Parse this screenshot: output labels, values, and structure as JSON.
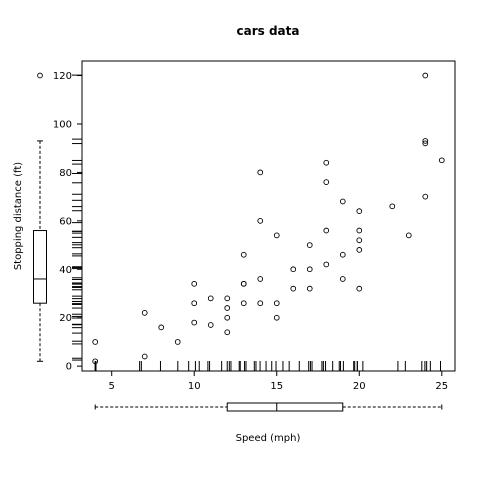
{
  "chart_data": {
    "type": "scatter",
    "title": "cars data",
    "xlabel": "Speed (mph)",
    "ylabel": "Stopping distance (ft)",
    "xlim": [
      3.2,
      25.8
    ],
    "ylim": [
      -2,
      126
    ],
    "x_ticks": [
      5,
      10,
      15,
      20,
      25
    ],
    "y_ticks": [
      0,
      20,
      40,
      60,
      80,
      100,
      120
    ],
    "grid": false,
    "marginal": {
      "x_rug": true,
      "y_rug": true,
      "x_boxplot": {
        "min": 4,
        "q1": 12,
        "median": 15,
        "q3": 19,
        "max": 25
      },
      "y_boxplot": {
        "min": 2,
        "q1": 26,
        "median": 36,
        "q3": 56,
        "max": 93,
        "outliers": [
          120
        ]
      }
    },
    "points": [
      {
        "x": 4,
        "y": 2
      },
      {
        "x": 4,
        "y": 10
      },
      {
        "x": 7,
        "y": 4
      },
      {
        "x": 7,
        "y": 22
      },
      {
        "x": 8,
        "y": 16
      },
      {
        "x": 9,
        "y": 10
      },
      {
        "x": 10,
        "y": 18
      },
      {
        "x": 10,
        "y": 26
      },
      {
        "x": 10,
        "y": 34
      },
      {
        "x": 11,
        "y": 17
      },
      {
        "x": 11,
        "y": 28
      },
      {
        "x": 12,
        "y": 14
      },
      {
        "x": 12,
        "y": 20
      },
      {
        "x": 12,
        "y": 24
      },
      {
        "x": 12,
        "y": 28
      },
      {
        "x": 13,
        "y": 26
      },
      {
        "x": 13,
        "y": 34
      },
      {
        "x": 13,
        "y": 34
      },
      {
        "x": 13,
        "y": 46
      },
      {
        "x": 14,
        "y": 26
      },
      {
        "x": 14,
        "y": 36
      },
      {
        "x": 14,
        "y": 60
      },
      {
        "x": 14,
        "y": 80
      },
      {
        "x": 15,
        "y": 20
      },
      {
        "x": 15,
        "y": 26
      },
      {
        "x": 15,
        "y": 54
      },
      {
        "x": 16,
        "y": 32
      },
      {
        "x": 16,
        "y": 40
      },
      {
        "x": 17,
        "y": 32
      },
      {
        "x": 17,
        "y": 40
      },
      {
        "x": 17,
        "y": 50
      },
      {
        "x": 18,
        "y": 42
      },
      {
        "x": 18,
        "y": 56
      },
      {
        "x": 18,
        "y": 76
      },
      {
        "x": 18,
        "y": 84
      },
      {
        "x": 19,
        "y": 36
      },
      {
        "x": 19,
        "y": 46
      },
      {
        "x": 19,
        "y": 68
      },
      {
        "x": 20,
        "y": 32
      },
      {
        "x": 20,
        "y": 48
      },
      {
        "x": 20,
        "y": 52
      },
      {
        "x": 20,
        "y": 56
      },
      {
        "x": 20,
        "y": 64
      },
      {
        "x": 22,
        "y": 66
      },
      {
        "x": 23,
        "y": 54
      },
      {
        "x": 24,
        "y": 70
      },
      {
        "x": 24,
        "y": 92
      },
      {
        "x": 24,
        "y": 93
      },
      {
        "x": 24,
        "y": 120
      },
      {
        "x": 25,
        "y": 85
      }
    ]
  }
}
